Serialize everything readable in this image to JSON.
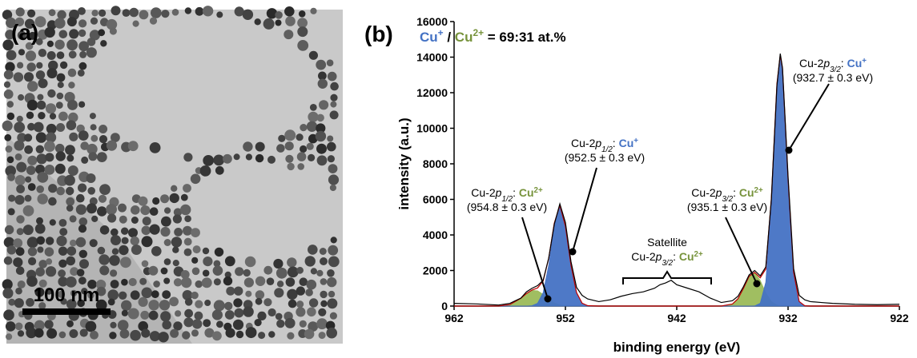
{
  "panels": {
    "a": "(a)",
    "b": "(b)",
    "scale_bar": "100 nm"
  },
  "chart_data": {
    "type": "area",
    "title_parts": [
      {
        "text": "Cu",
        "color": "#4472c4"
      },
      {
        "text": "+",
        "color": "#4472c4",
        "sup": true
      },
      {
        "text": " / "
      },
      {
        "text": "Cu",
        "color": "#77933c"
      },
      {
        "text": "2+",
        "color": "#77933c",
        "sup": true
      },
      {
        "text": " = 69:31 at.%"
      }
    ],
    "x_label": "binding energy (eV)",
    "y_label": "intensity (a.u.)",
    "xlim": [
      962,
      922
    ],
    "xticks": [
      962,
      952,
      942,
      932,
      922
    ],
    "ylim": [
      0,
      16000
    ],
    "yticks": [
      0,
      2000,
      4000,
      6000,
      8000,
      10000,
      12000,
      14000,
      16000
    ],
    "x": [
      962,
      960,
      958,
      957,
      956,
      955.5,
      955,
      954.5,
      954,
      953.5,
      953,
      952.5,
      952,
      951.5,
      951,
      950.5,
      950,
      949,
      948,
      947,
      946,
      945,
      944,
      943.5,
      943,
      942.5,
      942,
      941,
      940,
      939,
      938,
      937,
      936.5,
      936,
      935.5,
      935,
      934.5,
      934,
      933.5,
      933,
      932.7,
      932.5,
      932,
      931.5,
      931,
      930.5,
      930,
      929,
      928,
      926,
      924,
      922
    ],
    "series": [
      {
        "color": "#9bbb59",
        "fill": true,
        "values": [
          0,
          0,
          5,
          80,
          438,
          705,
          882,
          860,
          653,
          387,
          178,
          64,
          18,
          0,
          0,
          0,
          0,
          0,
          0,
          0,
          0,
          0,
          0,
          0,
          0,
          0,
          0,
          0,
          0,
          0,
          0,
          0,
          0,
          0,
          0,
          0,
          0,
          0,
          0,
          0,
          0,
          0,
          0,
          0,
          0,
          0,
          0,
          0,
          0,
          0,
          0,
          0
        ]
      },
      {
        "color": "#9bbb59",
        "fill": true,
        "values": [
          0,
          0,
          0,
          0,
          0,
          0,
          0,
          0,
          0,
          0,
          0,
          0,
          0,
          0,
          0,
          0,
          0,
          0,
          0,
          0,
          0,
          0,
          0,
          0,
          0,
          0,
          0,
          0,
          0,
          0,
          3,
          113,
          411,
          1009,
          1676,
          1885,
          1434,
          738,
          257,
          60,
          21,
          9,
          0,
          0,
          0,
          0,
          0,
          0,
          0,
          0,
          0,
          0
        ]
      },
      {
        "color": "#4472c4",
        "fill": true,
        "values": [
          0,
          0,
          0,
          0,
          0,
          0,
          22,
          160,
          758,
          2302,
          4485,
          5600,
          4485,
          2302,
          758,
          160,
          22,
          0,
          0,
          0,
          0,
          0,
          0,
          0,
          0,
          0,
          0,
          0,
          0,
          0,
          0,
          0,
          0,
          0,
          0,
          0,
          0,
          0,
          0,
          0,
          0,
          0,
          0,
          0,
          0,
          0,
          0,
          0,
          0,
          0,
          0,
          0
        ]
      },
      {
        "color": "#4472c4",
        "fill": true,
        "values": [
          0,
          0,
          0,
          0,
          0,
          0,
          0,
          0,
          0,
          0,
          0,
          0,
          0,
          0,
          0,
          0,
          0,
          0,
          0,
          0,
          0,
          0,
          0,
          0,
          0,
          0,
          0,
          0,
          0,
          0,
          0,
          0,
          0,
          0,
          0,
          9,
          156,
          1346,
          5795,
          12440,
          14100,
          13338,
          7135,
          1908,
          256,
          17,
          0,
          0,
          0,
          0,
          0,
          0
        ]
      },
      {
        "color": "#c00000",
        "fill": false,
        "values": [
          0,
          0,
          5,
          80,
          438,
          705,
          904,
          1020,
          1411,
          2689,
          4663,
          5664,
          4503,
          2302,
          758,
          160,
          22,
          0,
          0,
          0,
          0,
          0,
          0,
          0,
          0,
          0,
          0,
          0,
          0,
          0,
          3,
          113,
          411,
          1009,
          1676,
          1894,
          1590,
          2084,
          6052,
          12500,
          14121,
          13347,
          7135,
          1908,
          256,
          17,
          0,
          0,
          0,
          0,
          0,
          0
        ]
      },
      {
        "color": "#000000",
        "fill": false,
        "values": [
          150,
          120,
          60,
          150,
          450,
          800,
          1000,
          1150,
          1450,
          2700,
          4600,
          5750,
          4700,
          2500,
          1050,
          600,
          400,
          250,
          350,
          550,
          700,
          800,
          1000,
          1200,
          1300,
          1450,
          1200,
          1000,
          800,
          450,
          200,
          300,
          550,
          1100,
          1750,
          2000,
          1700,
          2200,
          6000,
          12400,
          14200,
          13400,
          7300,
          2100,
          600,
          350,
          250,
          200,
          150,
          100,
          80,
          100
        ]
      }
    ],
    "annotations": [
      {
        "lines": [
          [
            {
              "text": "Cu-2"
            },
            {
              "text": "p",
              "italic": true
            },
            {
              "text": "3/2",
              "italic": true,
              "sub": true
            },
            {
              "text": ": "
            },
            {
              "text": "Cu",
              "color": "#4472c4",
              "bold": true
            },
            {
              "text": "+",
              "color": "#4472c4",
              "bold": true,
              "sup": true
            }
          ],
          [
            {
              "text": "(932.7 ± 0.3 eV)"
            }
          ]
        ]
      },
      {
        "lines": [
          [
            {
              "text": "Cu-2"
            },
            {
              "text": "p",
              "italic": true
            },
            {
              "text": "1/2",
              "italic": true,
              "sub": true
            },
            {
              "text": ": "
            },
            {
              "text": "Cu",
              "color": "#4472c4",
              "bold": true
            },
            {
              "text": "+",
              "color": "#4472c4",
              "bold": true,
              "sup": true
            }
          ],
          [
            {
              "text": "(952.5 ± 0.3 eV)"
            }
          ]
        ]
      },
      {
        "lines": [
          [
            {
              "text": "Cu-2"
            },
            {
              "text": "p",
              "italic": true
            },
            {
              "text": "1/2",
              "italic": true,
              "sub": true
            },
            {
              "text": ": "
            },
            {
              "text": "Cu",
              "color": "#77933c",
              "bold": true
            },
            {
              "text": "2+",
              "color": "#77933c",
              "bold": true,
              "sup": true
            }
          ],
          [
            {
              "text": "(954.8 ± 0.3 eV)"
            }
          ]
        ]
      },
      {
        "lines": [
          [
            {
              "text": "Cu-2"
            },
            {
              "text": "p",
              "italic": true
            },
            {
              "text": "3/2",
              "italic": true,
              "sub": true
            },
            {
              "text": ": "
            },
            {
              "text": "Cu",
              "color": "#77933c",
              "bold": true
            },
            {
              "text": "2+",
              "color": "#77933c",
              "bold": true,
              "sup": true
            }
          ],
          [
            {
              "text": "(935.1 ± 0.3 eV)"
            }
          ]
        ]
      },
      {
        "lines": [
          [
            {
              "text": "Satellite"
            }
          ],
          [
            {
              "text": "Cu-2"
            },
            {
              "text": "p",
              "italic": true
            },
            {
              "text": "3/2",
              "italic": true,
              "sub": true
            },
            {
              "text": ": "
            },
            {
              "text": "Cu",
              "color": "#77933c",
              "bold": true
            },
            {
              "text": "2+",
              "color": "#77933c",
              "bold": true,
              "sup": true
            }
          ]
        ]
      }
    ]
  }
}
